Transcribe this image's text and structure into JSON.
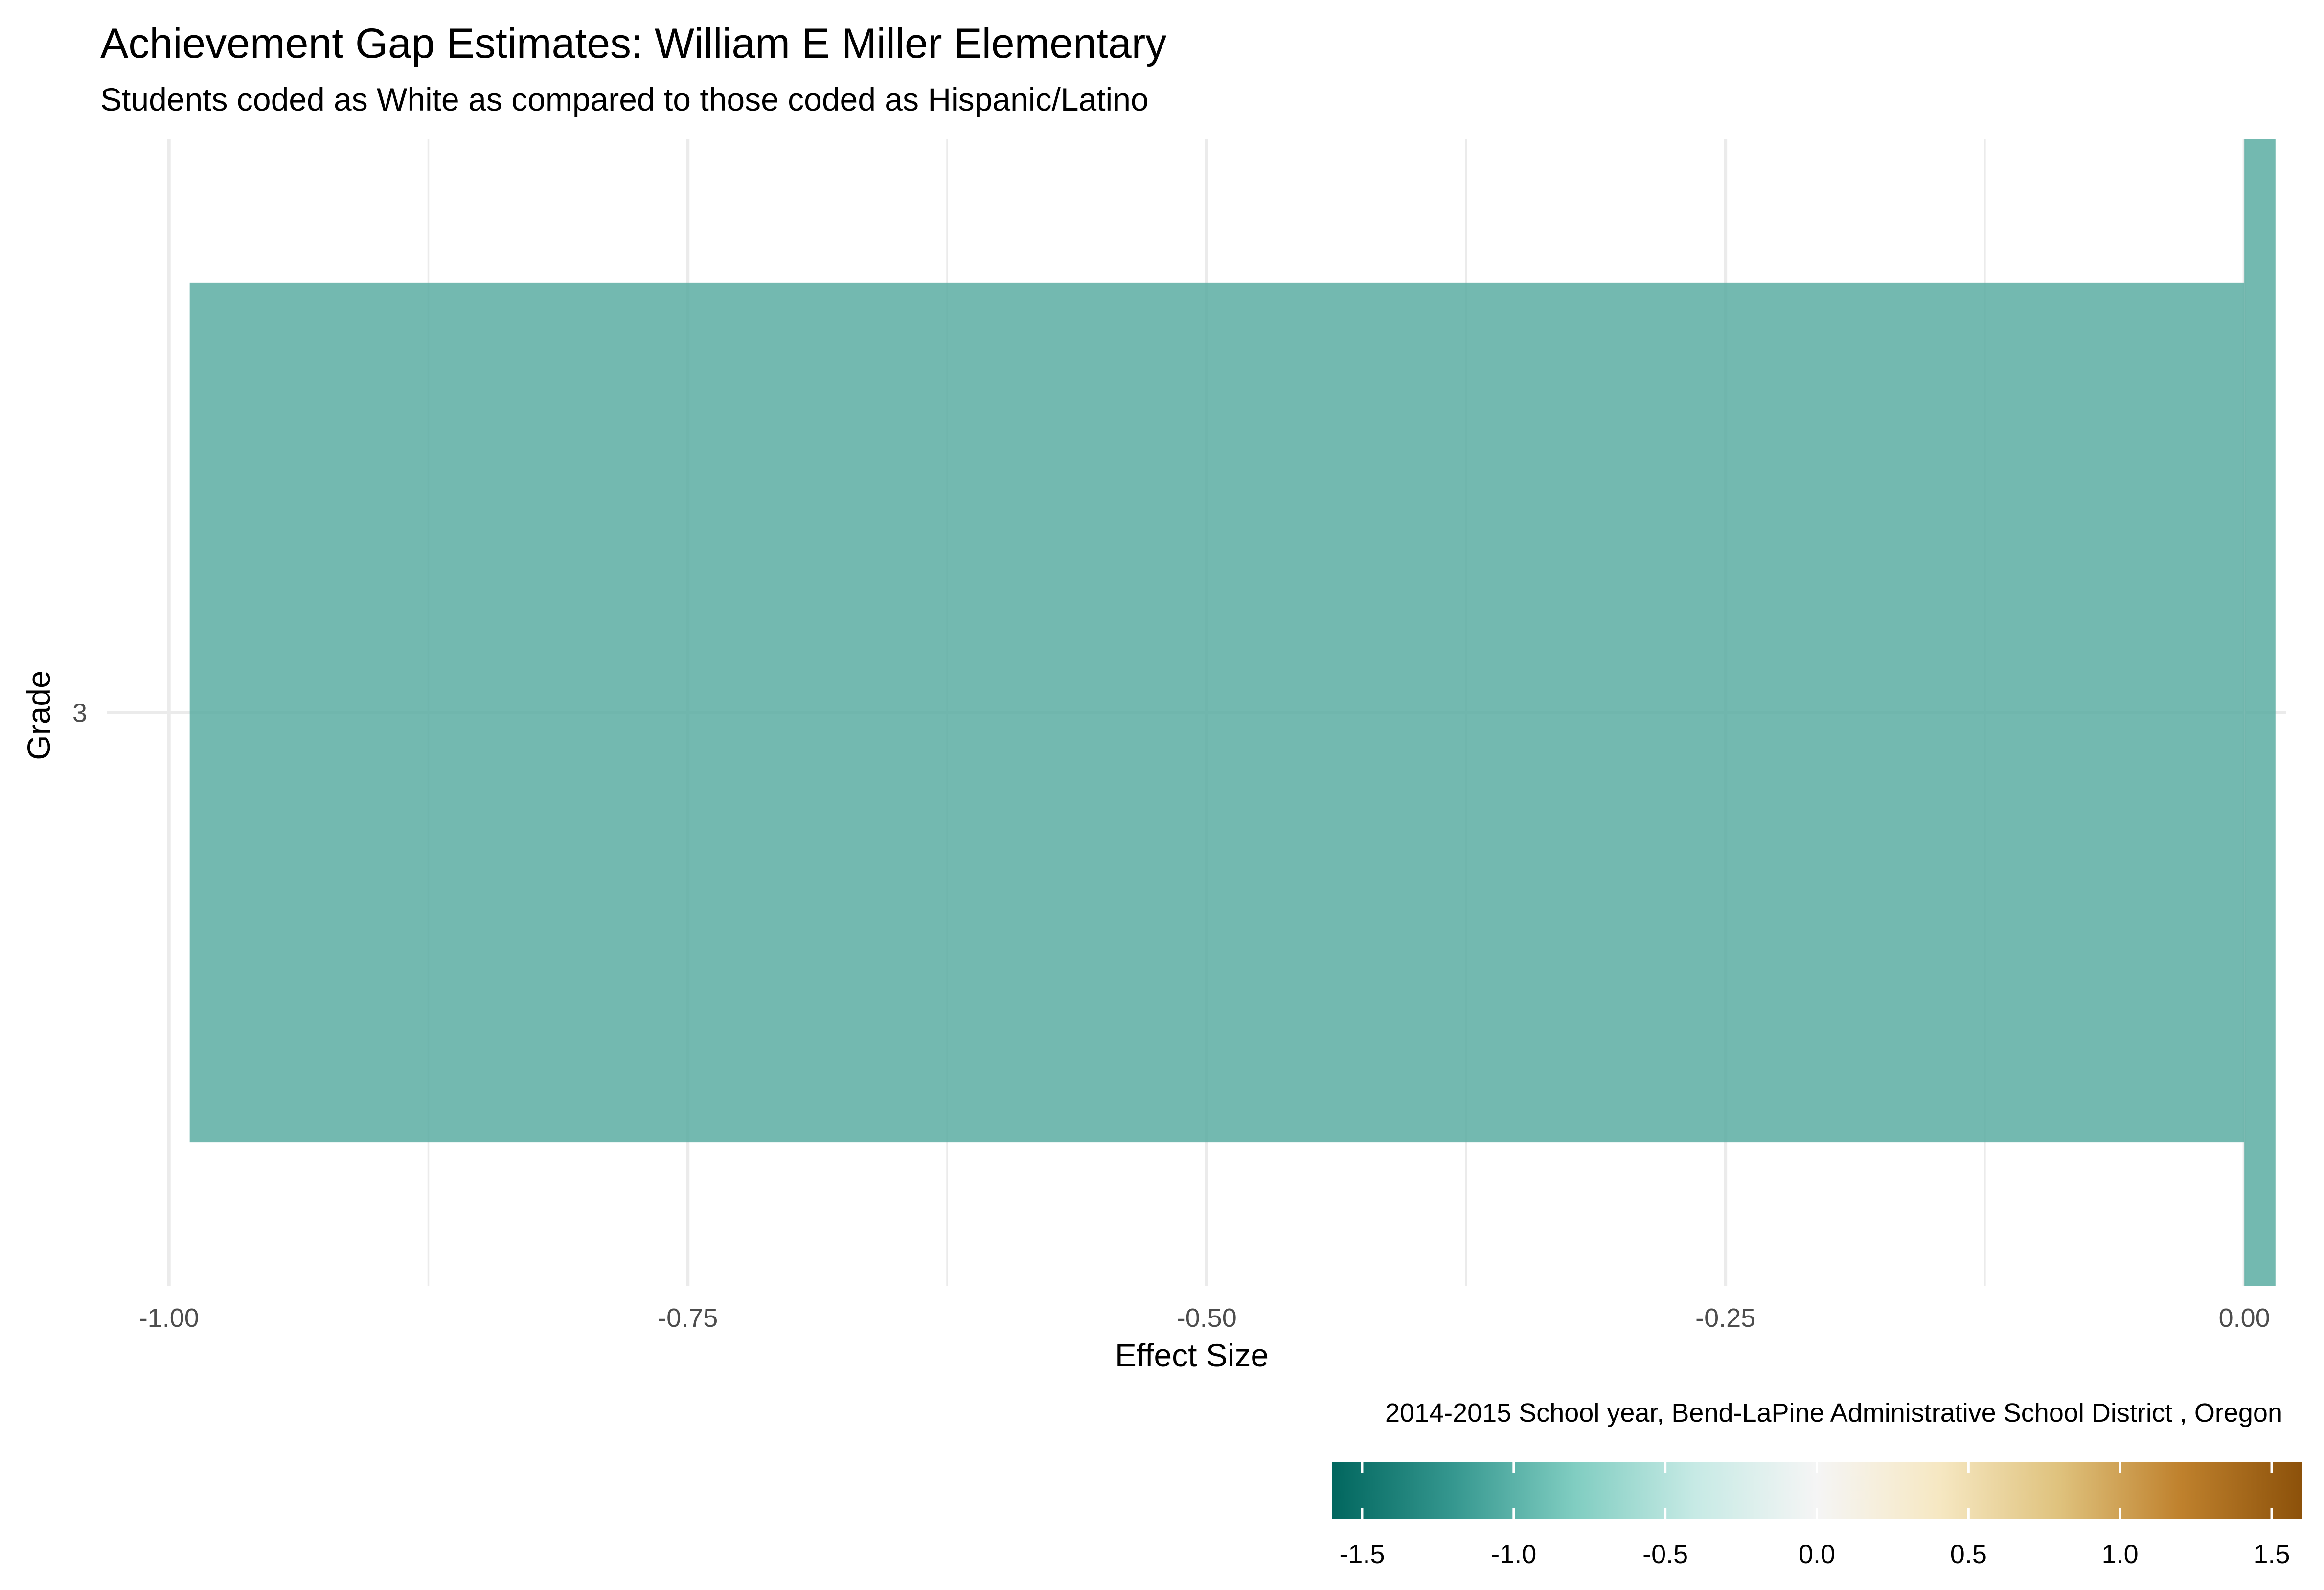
{
  "chart_data": {
    "type": "bar",
    "orientation": "horizontal",
    "title": "Achievement Gap Estimates: William E Miller Elementary",
    "subtitle": "Students coded as White as compared to those coded as Hispanic/Latino",
    "xlabel": "Effect Size",
    "ylabel": "Grade",
    "caption": "2014-2015 School year,  Bend-LaPine Administrative School District , Oregon",
    "categories": [
      "3"
    ],
    "bars": [
      {
        "category": "3",
        "value": -0.99,
        "color": "#5aada2"
      },
      {
        "category": "3",
        "value": 0.015,
        "color": "#5aada2"
      }
    ],
    "xlim": [
      -1.03,
      0.02
    ],
    "xticks": [
      -1.0,
      -0.75,
      -0.5,
      -0.25,
      0.0
    ],
    "xtick_labels": [
      "-1.00",
      "-0.75",
      "-0.50",
      "-0.25",
      "0.00"
    ],
    "grid": true,
    "legend": {
      "placement": "bottom-right",
      "type": "colorbar",
      "range": [
        -1.6,
        1.6
      ],
      "ticks": [
        -1.5,
        -1.0,
        -0.5,
        0.0,
        0.5,
        1.0,
        1.5
      ],
      "tick_labels": [
        "-1.5",
        "-1.0",
        "-0.5",
        "0.0",
        "0.5",
        "1.0",
        "1.5"
      ],
      "colors": [
        "#01665e",
        "#35978f",
        "#80cdc1",
        "#c7eae5",
        "#f5f5f5",
        "#f6e8c3",
        "#dfc27d",
        "#bf812d",
        "#8c510a"
      ]
    }
  }
}
